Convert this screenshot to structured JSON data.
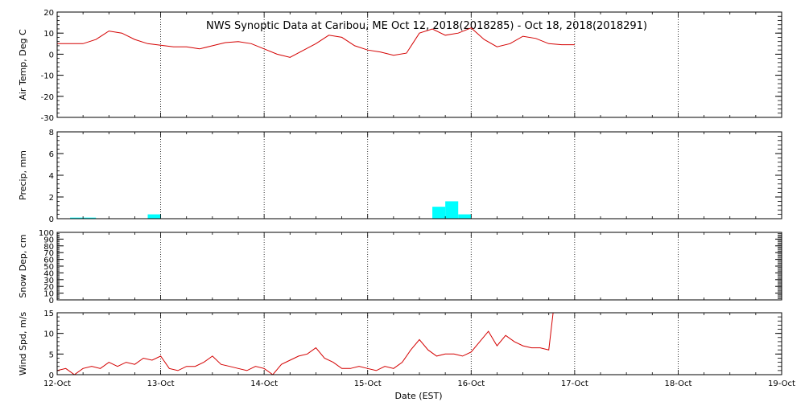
{
  "chart_data": {
    "type": "line",
    "title": "NWS Synoptic Data at Caribou, ME   Oct 12, 2018(2018285) - Oct 18, 2018(2018291)",
    "xlabel": "Date (EST)",
    "x_ticks": [
      "12-Oct",
      "13-Oct",
      "14-Oct",
      "15-Oct",
      "16-Oct",
      "17-Oct",
      "18-Oct",
      "19-Oct"
    ],
    "xlim": [
      "2018-10-12 00:00",
      "2018-10-19 00:00"
    ],
    "grid": true,
    "panels": [
      {
        "ylabel": "Air Temp, Deg C",
        "ylim": [
          -30,
          20
        ],
        "yticks": [
          -30,
          -20,
          -10,
          0,
          10,
          20
        ],
        "series_type": "line",
        "color": "#d40000",
        "x": [
          "2018-10-12 00:00",
          "2018-10-12 06:00",
          "2018-10-12 09:00",
          "2018-10-12 12:00",
          "2018-10-12 15:00",
          "2018-10-12 18:00",
          "2018-10-12 21:00",
          "2018-10-13 03:00",
          "2018-10-13 06:00",
          "2018-10-13 09:00",
          "2018-10-13 12:00",
          "2018-10-13 15:00",
          "2018-10-13 18:00",
          "2018-10-13 21:00",
          "2018-10-14 00:00",
          "2018-10-14 03:00",
          "2018-10-14 06:00",
          "2018-10-14 12:00",
          "2018-10-14 15:00",
          "2018-10-14 18:00",
          "2018-10-14 21:00",
          "2018-10-15 00:00",
          "2018-10-15 03:00",
          "2018-10-15 06:00",
          "2018-10-15 09:00",
          "2018-10-15 12:00",
          "2018-10-15 15:00",
          "2018-10-15 18:00",
          "2018-10-15 21:00",
          "2018-10-16 00:00",
          "2018-10-16 03:00",
          "2018-10-16 06:00",
          "2018-10-16 09:00",
          "2018-10-16 12:00",
          "2018-10-16 15:00",
          "2018-10-16 18:00",
          "2018-10-16 21:00",
          "2018-10-17 00:00"
        ],
        "values": [
          5,
          5,
          7,
          11,
          10,
          7,
          5,
          3.5,
          3.5,
          2.5,
          4,
          5.5,
          6,
          5,
          2.5,
          0,
          -1.5,
          5,
          9,
          8,
          4,
          2,
          1,
          -0.5,
          0.5,
          10,
          12,
          9,
          10,
          12.5,
          7,
          3.5,
          5,
          8.5,
          7.5,
          5,
          4.5,
          4.5
        ]
      },
      {
        "ylabel": "Precip, mm",
        "ylim": [
          0,
          8
        ],
        "yticks": [
          0,
          2,
          4,
          6,
          8
        ],
        "series_type": "bar",
        "color": "#00ffff",
        "bar_hours": 3,
        "x": [
          "2018-10-12 03:00",
          "2018-10-12 06:00",
          "2018-10-12 21:00",
          "2018-10-15 15:00",
          "2018-10-15 18:00",
          "2018-10-15 21:00"
        ],
        "values": [
          0.1,
          0.1,
          0.4,
          1.1,
          1.6,
          0.4
        ]
      },
      {
        "ylabel": "Snow Dep, cm",
        "ylim": [
          0,
          100
        ],
        "yticks": [
          0,
          10,
          20,
          30,
          40,
          50,
          60,
          70,
          80,
          90,
          100
        ],
        "series_type": "line",
        "color": "#d40000",
        "x": [],
        "values": []
      },
      {
        "ylabel": "Wind Spd, m/s",
        "ylim": [
          0,
          15
        ],
        "yticks": [
          0,
          5,
          10,
          15
        ],
        "series_type": "line",
        "color": "#d40000",
        "x": [
          "2018-10-12 00:00",
          "2018-10-12 02:00",
          "2018-10-12 04:00",
          "2018-10-12 06:00",
          "2018-10-12 08:00",
          "2018-10-12 10:00",
          "2018-10-12 12:00",
          "2018-10-12 14:00",
          "2018-10-12 16:00",
          "2018-10-12 18:00",
          "2018-10-12 20:00",
          "2018-10-12 22:00",
          "2018-10-13 00:00",
          "2018-10-13 02:00",
          "2018-10-13 04:00",
          "2018-10-13 06:00",
          "2018-10-13 08:00",
          "2018-10-13 10:00",
          "2018-10-13 12:00",
          "2018-10-13 14:00",
          "2018-10-13 16:00",
          "2018-10-13 18:00",
          "2018-10-13 20:00",
          "2018-10-13 22:00",
          "2018-10-14 00:00",
          "2018-10-14 02:00",
          "2018-10-14 04:00",
          "2018-10-14 06:00",
          "2018-10-14 08:00",
          "2018-10-14 10:00",
          "2018-10-14 12:00",
          "2018-10-14 14:00",
          "2018-10-14 16:00",
          "2018-10-14 18:00",
          "2018-10-14 20:00",
          "2018-10-14 22:00",
          "2018-10-15 00:00",
          "2018-10-15 02:00",
          "2018-10-15 04:00",
          "2018-10-15 06:00",
          "2018-10-15 08:00",
          "2018-10-15 10:00",
          "2018-10-15 12:00",
          "2018-10-15 14:00",
          "2018-10-15 16:00",
          "2018-10-15 18:00",
          "2018-10-15 20:00",
          "2018-10-15 22:00",
          "2018-10-16 00:00",
          "2018-10-16 02:00",
          "2018-10-16 04:00",
          "2018-10-16 06:00",
          "2018-10-16 08:00",
          "2018-10-16 10:00",
          "2018-10-16 12:00",
          "2018-10-16 14:00",
          "2018-10-16 16:00",
          "2018-10-16 18:00",
          "2018-10-16 19:00"
        ],
        "values": [
          1,
          1.5,
          0,
          1.5,
          2,
          1.5,
          3,
          2,
          3,
          2.5,
          4,
          3.5,
          4.5,
          1.5,
          1,
          2,
          2,
          3,
          4.5,
          2.5,
          2,
          1.5,
          1,
          2,
          1.5,
          0,
          2.5,
          3.5,
          4.5,
          5,
          6.5,
          4,
          3,
          1.5,
          1.5,
          2,
          1.5,
          1,
          2,
          1.5,
          3,
          6,
          8.5,
          6,
          4.5,
          5,
          5,
          4.5,
          5.5,
          8,
          10.5,
          7,
          9.5,
          8,
          7,
          6.5,
          6.5,
          6,
          15
        ]
      }
    ]
  }
}
